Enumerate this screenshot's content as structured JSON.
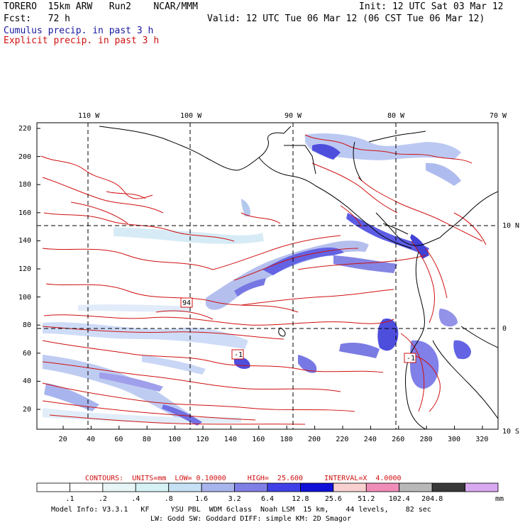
{
  "header": {
    "model": "TORERO  15km ARW   Run2    NCAR/MMM",
    "init": "Init: 12 UTC Sat 03 Mar 12",
    "fcst": "Fcst:   72 h",
    "valid": "Valid: 12 UTC Tue 06 Mar 12 (06 CST Tue 06 Mar 12)",
    "legend_cumulus": "Cumulus precip. in past 3 h",
    "legend_explicit": "Explicit precip. in past 3 h"
  },
  "colors": {
    "cumulus": "#1a1aa0",
    "explicit": "#d01010",
    "coast": "#000000",
    "grid": "#000000"
  },
  "axes": {
    "lon_labels": [
      "110 W",
      "100 W",
      "90 W",
      "80 W",
      "70 W"
    ],
    "lat_labels": [
      "10 N",
      "0",
      "10 S"
    ],
    "y_ticks": [
      "220",
      "200",
      "180",
      "160",
      "140",
      "120",
      "100",
      "80",
      "60",
      "40",
      "20"
    ],
    "x_ticks": [
      "20",
      "40",
      "60",
      "80",
      "100",
      "120",
      "140",
      "160",
      "180",
      "200",
      "220",
      "240",
      "260",
      "280",
      "300",
      "320"
    ]
  },
  "box_labels": [
    "94",
    "-1",
    "-1"
  ],
  "contour_line": "CONTOURS:  UNITS=mm  LOW= 0.10000     HIGH=  25.600     INTERVAL=X  4.0000",
  "colorbar": {
    "labels": [
      ".1",
      ".2",
      ".4",
      ".8",
      "1.6",
      "3.2",
      "6.4",
      "12.8",
      "25.6",
      "51.2",
      "102.4",
      "204.8"
    ],
    "unit": "mm",
    "colors": [
      "#ffffff",
      "#ffffff",
      "#e8f6f8",
      "#d7f2f4",
      "#c6e0f4",
      "#a8b4ec",
      "#7f7fe6",
      "#4040e8",
      "#1010d8",
      "#f8d0d0",
      "#f08cb8",
      "#b8b8b8",
      "#383838",
      "#d8a8f0"
    ]
  },
  "footer": {
    "line1": "Model Info: V3.3.1   KF     YSU PBL  WDM 6class  Noah LSM  15 km,    44 levels,    82 sec",
    "line2": "LW: Godd SW: Goddard DIFF: simple KM: 2D Smagor"
  }
}
